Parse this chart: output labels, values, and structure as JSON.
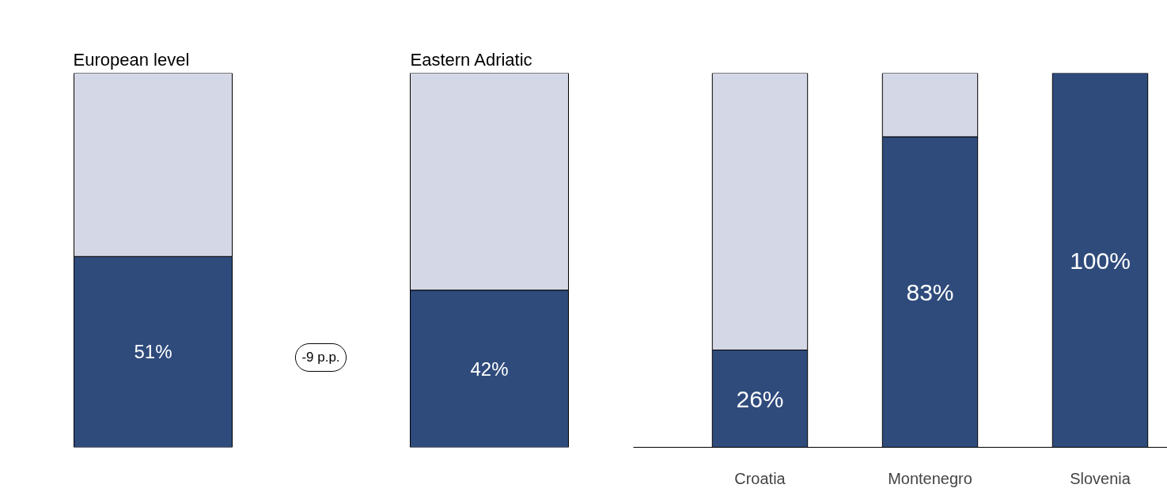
{
  "chart_data": [
    {
      "type": "bar",
      "title": "European level",
      "categories": [
        null
      ],
      "stacked": true,
      "ylim": [
        0,
        100
      ],
      "tick_labels": false,
      "grid": false,
      "annotations": [
        "-9 p.p."
      ],
      "series": [
        {
          "color": "#2f4b7c",
          "values": [
            51
          ],
          "value_labels": [
            "51%"
          ]
        },
        {
          "color": "#d4d8e6",
          "values": [
            49
          ]
        }
      ]
    },
    {
      "type": "bar",
      "title": "Eastern Adriatic",
      "categories": [
        null
      ],
      "stacked": true,
      "ylim": [
        0,
        100
      ],
      "tick_labels": false,
      "grid": false,
      "series": [
        {
          "color": "#2f4b7c",
          "values": [
            42
          ],
          "value_labels": [
            "42%"
          ]
        },
        {
          "color": "#d4d8e6",
          "values": [
            58
          ]
        }
      ]
    },
    {
      "type": "bar",
      "categories": [
        "Croatia",
        "Montenegro",
        "Slovenia"
      ],
      "stacked": true,
      "ylim": [
        0,
        100
      ],
      "tick_labels": "x",
      "grid": false,
      "series": [
        {
          "color": "#2f4b7c",
          "values": [
            26,
            83,
            100
          ],
          "value_labels": [
            "26%",
            "83%",
            "100%"
          ]
        },
        {
          "color": "#d4d8e6",
          "values": [
            74,
            17,
            null
          ]
        }
      ]
    }
  ]
}
